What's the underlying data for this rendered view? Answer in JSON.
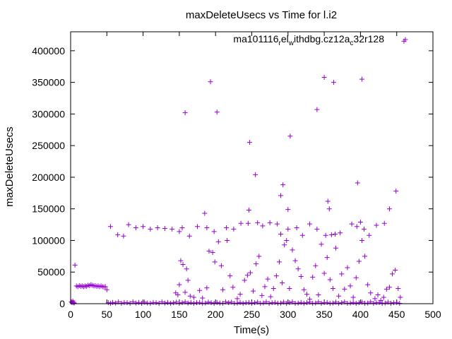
{
  "chart_data": {
    "type": "scatter",
    "title": "maxDeleteUsecs vs Time for l.i2",
    "xlabel": "Time(s)",
    "ylabel": "maxDeleteUsecs",
    "xlim": [
      0,
      500
    ],
    "ylim": [
      0,
      430000
    ],
    "xticks": [
      0,
      50,
      100,
      150,
      200,
      250,
      300,
      350,
      400,
      450,
      500
    ],
    "yticks": [
      0,
      50000,
      100000,
      150000,
      200000,
      250000,
      300000,
      350000,
      400000
    ],
    "xtick_labels": [
      "0",
      "50",
      "100",
      "150",
      "200",
      "250",
      "300",
      "350",
      "400",
      "450",
      "500"
    ],
    "ytick_labels": [
      "0",
      "50000",
      "100000",
      "150000",
      "200000",
      "250000",
      "300000",
      "350000",
      "400000"
    ],
    "grid": false,
    "legend_position": "top-right",
    "legend": {
      "parts": [
        "ma101116",
        "r",
        "el",
        "w",
        "ithdbg.cz12a",
        "c",
        "32r128"
      ]
    },
    "series": [
      {
        "name": "ma101116_rel_withdbg.cz12a_c32r128",
        "color": "#9400d3",
        "marker": "plus",
        "points": [
          [
            1,
            3000
          ],
          [
            2,
            1500
          ],
          [
            3,
            4000
          ],
          [
            4,
            2000
          ],
          [
            5,
            1000
          ],
          [
            6,
            61000
          ],
          [
            8,
            28000
          ],
          [
            10,
            27000
          ],
          [
            12,
            28500
          ],
          [
            14,
            27500
          ],
          [
            16,
            28000
          ],
          [
            18,
            27000
          ],
          [
            20,
            28000
          ],
          [
            22,
            27500
          ],
          [
            24,
            29000
          ],
          [
            26,
            28500
          ],
          [
            28,
            30000
          ],
          [
            30,
            29000
          ],
          [
            32,
            28000
          ],
          [
            34,
            28500
          ],
          [
            36,
            27500
          ],
          [
            38,
            28000
          ],
          [
            40,
            27000
          ],
          [
            42,
            28000
          ],
          [
            44,
            27000
          ],
          [
            46,
            26500
          ],
          [
            48,
            27000
          ],
          [
            50,
            22000
          ],
          [
            52,
            1500
          ],
          [
            55,
            500
          ],
          [
            58,
            2000
          ],
          [
            62,
            1000
          ],
          [
            66,
            3000
          ],
          [
            70,
            500
          ],
          [
            74,
            2000
          ],
          [
            78,
            1500
          ],
          [
            82,
            500
          ],
          [
            86,
            3000
          ],
          [
            90,
            1000
          ],
          [
            94,
            2000
          ],
          [
            98,
            500
          ],
          [
            102,
            2500
          ],
          [
            106,
            1000
          ],
          [
            110,
            500
          ],
          [
            114,
            2000
          ],
          [
            118,
            1500
          ],
          [
            122,
            500
          ],
          [
            126,
            3000
          ],
          [
            130,
            1000
          ],
          [
            134,
            2000
          ],
          [
            138,
            500
          ],
          [
            142,
            1500
          ],
          [
            146,
            2500
          ],
          [
            150,
            500
          ],
          [
            154,
            1500
          ],
          [
            158,
            3000
          ],
          [
            162,
            1000
          ],
          [
            166,
            2000
          ],
          [
            170,
            500
          ],
          [
            174,
            1500
          ],
          [
            178,
            2000
          ],
          [
            182,
            500
          ],
          [
            186,
            1000
          ],
          [
            190,
            2500
          ],
          [
            194,
            1500
          ],
          [
            198,
            500
          ],
          [
            202,
            2000
          ],
          [
            206,
            1000
          ],
          [
            210,
            500
          ],
          [
            214,
            3000
          ],
          [
            218,
            1500
          ],
          [
            222,
            2500
          ],
          [
            226,
            500
          ],
          [
            230,
            1000
          ],
          [
            234,
            2000
          ],
          [
            238,
            500
          ],
          [
            242,
            1500
          ],
          [
            246,
            2000
          ],
          [
            250,
            500
          ],
          [
            254,
            1500
          ],
          [
            258,
            2500
          ],
          [
            262,
            500
          ],
          [
            266,
            1000
          ],
          [
            270,
            3000
          ],
          [
            274,
            500
          ],
          [
            278,
            1500
          ],
          [
            282,
            2000
          ],
          [
            286,
            500
          ],
          [
            290,
            1000
          ],
          [
            294,
            2500
          ],
          [
            298,
            500
          ],
          [
            302,
            1500
          ],
          [
            306,
            3000
          ],
          [
            310,
            500
          ],
          [
            314,
            1000
          ],
          [
            318,
            2000
          ],
          [
            322,
            500
          ],
          [
            326,
            1500
          ],
          [
            330,
            2500
          ],
          [
            334,
            500
          ],
          [
            338,
            1000
          ],
          [
            342,
            3000
          ],
          [
            346,
            500
          ],
          [
            350,
            1500
          ],
          [
            354,
            2000
          ],
          [
            358,
            500
          ],
          [
            362,
            1000
          ],
          [
            366,
            2500
          ],
          [
            370,
            500
          ],
          [
            374,
            1500
          ],
          [
            378,
            3000
          ],
          [
            382,
            500
          ],
          [
            386,
            1000
          ],
          [
            390,
            2000
          ],
          [
            394,
            500
          ],
          [
            398,
            1500
          ],
          [
            402,
            2500
          ],
          [
            406,
            500
          ],
          [
            410,
            1000
          ],
          [
            414,
            3000
          ],
          [
            418,
            500
          ],
          [
            422,
            1500
          ],
          [
            426,
            2000
          ],
          [
            430,
            500
          ],
          [
            434,
            1000
          ],
          [
            438,
            2500
          ],
          [
            442,
            500
          ],
          [
            446,
            1500
          ],
          [
            450,
            2000
          ],
          [
            454,
            500
          ],
          [
            55,
            122000
          ],
          [
            65,
            109000
          ],
          [
            73,
            107000
          ],
          [
            80,
            125000
          ],
          [
            90,
            120000
          ],
          [
            100,
            122000
          ],
          [
            110,
            118000
          ],
          [
            120,
            120000
          ],
          [
            130,
            119000
          ],
          [
            140,
            118000
          ],
          [
            150,
            114000
          ],
          [
            154,
            120000
          ],
          [
            164,
            107000
          ],
          [
            175,
            122000
          ],
          [
            188,
            120000
          ],
          [
            198,
            114000
          ],
          [
            215,
            120000
          ],
          [
            225,
            118000
          ],
          [
            235,
            127000
          ],
          [
            245,
            127000
          ],
          [
            258,
            128000
          ],
          [
            265,
            123000
          ],
          [
            275,
            128000
          ],
          [
            285,
            126000
          ],
          [
            290,
            110000
          ],
          [
            300,
            118000
          ],
          [
            312,
            120000
          ],
          [
            320,
            108000
          ],
          [
            330,
            126000
          ],
          [
            340,
            118000
          ],
          [
            352,
            108000
          ],
          [
            360,
            109000
          ],
          [
            365,
            110000
          ],
          [
            372,
            112000
          ],
          [
            388,
            126000
          ],
          [
            395,
            122000
          ],
          [
            400,
            129000
          ],
          [
            405,
            118000
          ],
          [
            412,
            108000
          ],
          [
            422,
            124000
          ],
          [
            433,
            127000
          ],
          [
            440,
            150000
          ],
          [
            449,
            178000
          ],
          [
            460,
            415000
          ],
          [
            158,
            302000
          ],
          [
            193,
            351000
          ],
          [
            202,
            303000
          ],
          [
            247,
            255000
          ],
          [
            255,
            204000
          ],
          [
            293,
            188000
          ],
          [
            303,
            265000
          ],
          [
            340,
            307000
          ],
          [
            350,
            358000
          ],
          [
            355,
            162000
          ],
          [
            357,
            150000
          ],
          [
            363,
            350000
          ],
          [
            396,
            191000
          ],
          [
            402,
            355000
          ],
          [
            290,
            171000
          ],
          [
            300,
            149000
          ],
          [
            246,
            148000
          ],
          [
            185,
            143000
          ],
          [
            152,
            68000
          ],
          [
            155,
            62000
          ],
          [
            160,
            55000
          ],
          [
            162,
            37000
          ],
          [
            150,
            30000
          ],
          [
            145,
            17000
          ],
          [
            148,
            14000
          ],
          [
            158,
            18000
          ],
          [
            165,
            12000
          ],
          [
            170,
            10000
          ],
          [
            178,
            21000
          ],
          [
            182,
            9000
          ],
          [
            188,
            25000
          ],
          [
            191,
            83000
          ],
          [
            196,
            81000
          ],
          [
            199,
            66000
          ],
          [
            204,
            98000
          ],
          [
            208,
            60000
          ],
          [
            210,
            22000
          ],
          [
            216,
            100000
          ],
          [
            220,
            44000
          ],
          [
            224,
            26000
          ],
          [
            230,
            8000
          ],
          [
            234,
            15000
          ],
          [
            240,
            37000
          ],
          [
            244,
            45000
          ],
          [
            248,
            49000
          ],
          [
            252,
            20000
          ],
          [
            256,
            63000
          ],
          [
            260,
            75000
          ],
          [
            264,
            13000
          ],
          [
            268,
            27000
          ],
          [
            272,
            39000
          ],
          [
            276,
            11000
          ],
          [
            280,
            24000
          ],
          [
            284,
            44000
          ],
          [
            288,
            66000
          ],
          [
            292,
            33000
          ],
          [
            295,
            93000
          ],
          [
            298,
            100000
          ],
          [
            302,
            24000
          ],
          [
            306,
            85000
          ],
          [
            310,
            68000
          ],
          [
            314,
            55000
          ],
          [
            318,
            43000
          ],
          [
            322,
            22000
          ],
          [
            326,
            15000
          ],
          [
            330,
            7000
          ],
          [
            334,
            42000
          ],
          [
            338,
            60000
          ],
          [
            342,
            14000
          ],
          [
            346,
            94000
          ],
          [
            350,
            48000
          ],
          [
            354,
            73000
          ],
          [
            358,
            38000
          ],
          [
            362,
            24000
          ],
          [
            366,
            88000
          ],
          [
            370,
            12000
          ],
          [
            374,
            47000
          ],
          [
            378,
            23000
          ],
          [
            382,
            57000
          ],
          [
            386,
            28000
          ],
          [
            390,
            10000
          ],
          [
            394,
            41000
          ],
          [
            398,
            67000
          ],
          [
            402,
            100000
          ],
          [
            406,
            75000
          ],
          [
            410,
            30000
          ],
          [
            414,
            17000
          ],
          [
            420,
            8000
          ],
          [
            424,
            14000
          ],
          [
            428,
            5000
          ],
          [
            432,
            10000
          ],
          [
            436,
            23000
          ],
          [
            440,
            26000
          ],
          [
            444,
            47000
          ],
          [
            448,
            53000
          ],
          [
            452,
            24000
          ],
          [
            455,
            10000
          ]
        ]
      }
    ]
  }
}
